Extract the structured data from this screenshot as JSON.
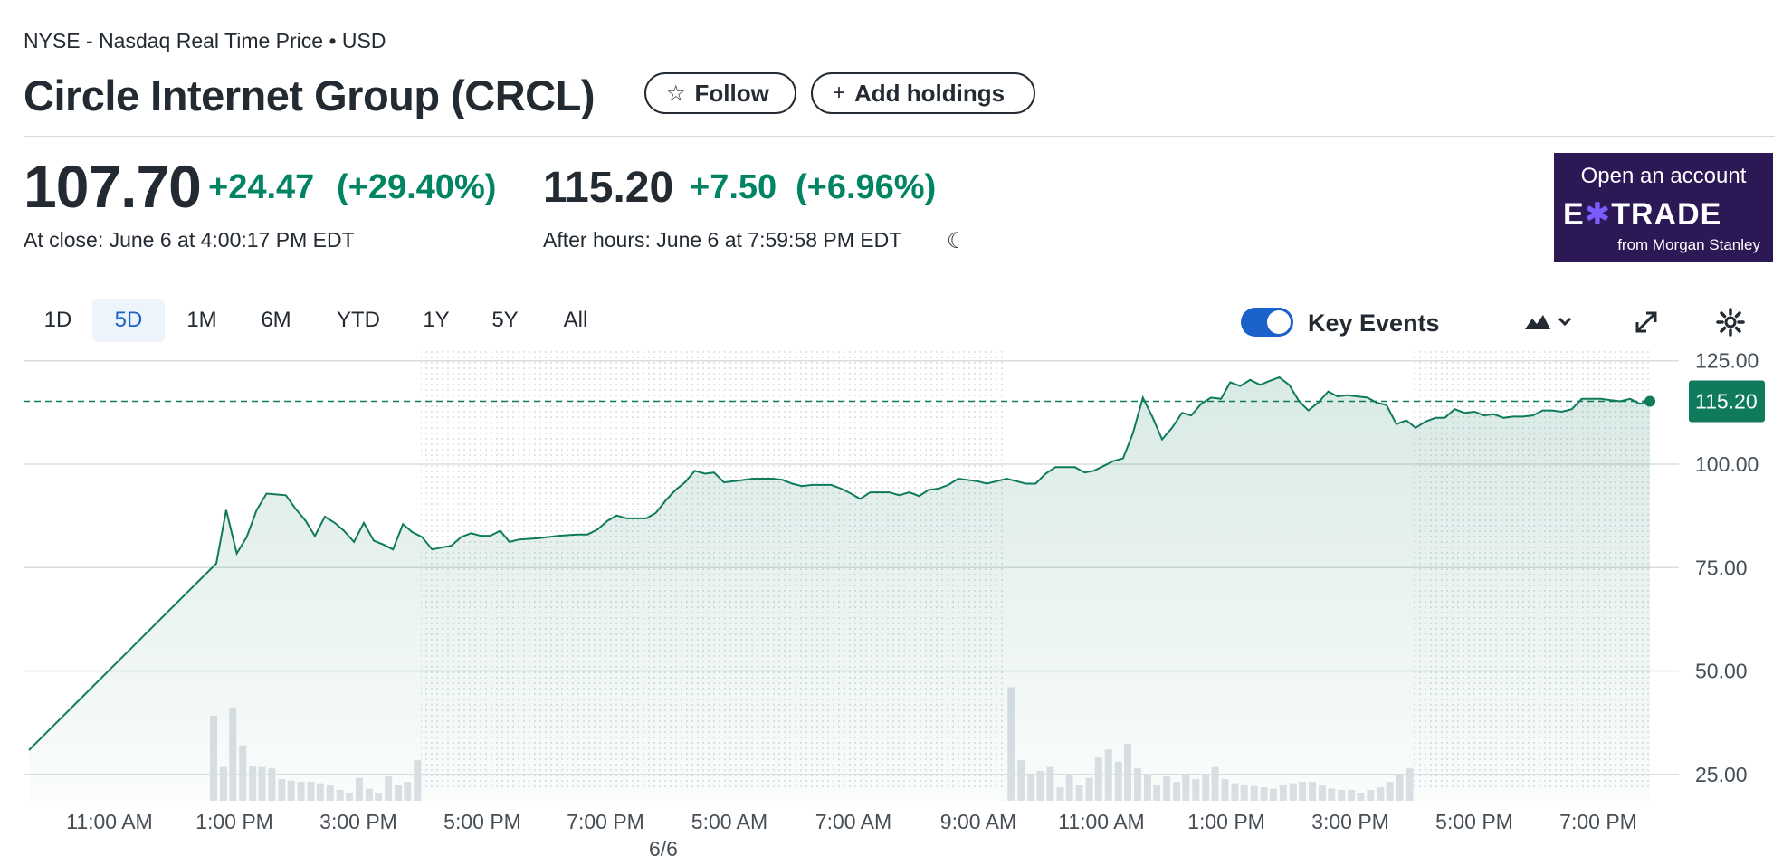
{
  "header": {
    "exchange": "NYSE - Nasdaq Real Time Price • USD",
    "title": "Circle Internet Group (CRCL)",
    "follow_label": "Follow",
    "add_holdings_label": "Add holdings"
  },
  "quote": {
    "close_price": "107.70",
    "close_change": "+24.47",
    "close_change_pct": "(+29.40%)",
    "close_time": "At close: June 6 at 4:00:17 PM EDT",
    "after_price": "115.20",
    "after_change": "+7.50",
    "after_change_pct": "(+6.96%)",
    "after_time": "After hours: June 6 at 7:59:58 PM EDT"
  },
  "ad": {
    "line1": "Open an account",
    "brand_a": "E",
    "brand_x": "✱",
    "brand_b": "TRADE",
    "line3": "from Morgan Stanley"
  },
  "ranges": [
    "1D",
    "5D",
    "1M",
    "6M",
    "YTD",
    "1Y",
    "5Y",
    "All"
  ],
  "active_range": "5D",
  "key_events_label": "Key Events",
  "icons": {
    "follow": "star-icon",
    "add": "plus-icon",
    "after_hours": "moon-icon",
    "chart_type": "mountain-chart-icon",
    "expand": "expand-icon",
    "settings": "gear-icon"
  },
  "colors": {
    "positive": "#008463",
    "line": "#0f7a5c",
    "accent": "#1a62c9",
    "ad_bg": "#2b1855"
  },
  "chart_data": {
    "type": "area",
    "current_label": "115.20",
    "y_ticks": [
      "125.00",
      "100.00",
      "75.00",
      "50.00",
      "25.00"
    ],
    "ylim": [
      21.9,
      129.1
    ],
    "x_tick_labels": [
      "11:00 AM",
      "1:00 PM",
      "3:00 PM",
      "5:00 PM",
      "7:00 PM",
      "5:00 AM",
      "7:00 AM",
      "9:00 AM",
      "11:00 AM",
      "1:00 PM",
      "3:00 PM",
      "5:00 PM",
      "7:00 PM"
    ],
    "date_label": "6/6",
    "reference_line": 115.2,
    "price_series": [
      [
        0,
        30.9
      ],
      [
        2.83,
        76.0
      ],
      [
        2.98,
        88.9
      ],
      [
        3.14,
        78.4
      ],
      [
        3.29,
        82.4
      ],
      [
        3.44,
        88.9
      ],
      [
        3.59,
        92.9
      ],
      [
        3.88,
        92.5
      ],
      [
        4.03,
        89.2
      ],
      [
        4.18,
        86.3
      ],
      [
        4.32,
        82.6
      ],
      [
        4.47,
        87.3
      ],
      [
        4.62,
        85.8
      ],
      [
        4.76,
        83.9
      ],
      [
        4.91,
        81.2
      ],
      [
        5.06,
        85.8
      ],
      [
        5.21,
        81.5
      ],
      [
        5.35,
        80.6
      ],
      [
        5.5,
        79.4
      ],
      [
        5.65,
        85.5
      ],
      [
        5.79,
        83.6
      ],
      [
        5.94,
        82.4
      ],
      [
        6.09,
        79.4
      ],
      [
        6.38,
        80.3
      ],
      [
        6.53,
        82.4
      ],
      [
        6.68,
        83.3
      ],
      [
        6.82,
        82.7
      ],
      [
        6.97,
        82.7
      ],
      [
        7.12,
        83.9
      ],
      [
        7.26,
        81.2
      ],
      [
        7.41,
        81.8
      ],
      [
        7.71,
        82.1
      ],
      [
        8.0,
        82.7
      ],
      [
        8.29,
        83.0
      ],
      [
        8.44,
        83.0
      ],
      [
        8.59,
        84.2
      ],
      [
        8.74,
        86.3
      ],
      [
        8.88,
        87.6
      ],
      [
        9.03,
        86.9
      ],
      [
        9.18,
        86.9
      ],
      [
        9.33,
        86.9
      ],
      [
        9.47,
        88.2
      ],
      [
        9.62,
        91.2
      ],
      [
        9.77,
        93.8
      ],
      [
        9.91,
        95.6
      ],
      [
        10.06,
        98.4
      ],
      [
        10.21,
        97.7
      ],
      [
        10.35,
        98.0
      ],
      [
        10.5,
        95.6
      ],
      [
        10.65,
        95.9
      ],
      [
        10.8,
        96.2
      ],
      [
        10.94,
        96.5
      ],
      [
        11.24,
        96.5
      ],
      [
        11.39,
        96.2
      ],
      [
        11.53,
        95.3
      ],
      [
        11.68,
        94.7
      ],
      [
        11.83,
        95.0
      ],
      [
        12.12,
        95.0
      ],
      [
        12.27,
        94.1
      ],
      [
        12.42,
        92.9
      ],
      [
        12.56,
        91.6
      ],
      [
        12.71,
        93.2
      ],
      [
        12.86,
        93.2
      ],
      [
        13.0,
        93.2
      ],
      [
        13.15,
        92.5
      ],
      [
        13.3,
        93.2
      ],
      [
        13.45,
        92.3
      ],
      [
        13.59,
        93.8
      ],
      [
        13.74,
        94.1
      ],
      [
        13.89,
        95.0
      ],
      [
        14.04,
        96.5
      ],
      [
        14.33,
        95.9
      ],
      [
        14.47,
        95.3
      ],
      [
        14.62,
        95.9
      ],
      [
        14.77,
        96.5
      ],
      [
        14.92,
        95.9
      ],
      [
        15.06,
        95.3
      ],
      [
        15.21,
        95.3
      ],
      [
        15.36,
        97.7
      ],
      [
        15.51,
        99.3
      ],
      [
        15.8,
        99.3
      ],
      [
        15.95,
        98.0
      ],
      [
        16.09,
        98.4
      ],
      [
        16.24,
        99.6
      ],
      [
        16.39,
        100.8
      ],
      [
        16.53,
        101.4
      ],
      [
        16.68,
        107.5
      ],
      [
        16.83,
        116.1
      ],
      [
        16.98,
        111.2
      ],
      [
        17.12,
        106.0
      ],
      [
        17.27,
        108.8
      ],
      [
        17.42,
        112.4
      ],
      [
        17.56,
        111.8
      ],
      [
        17.71,
        114.6
      ],
      [
        17.86,
        116.1
      ],
      [
        18.01,
        115.8
      ],
      [
        18.15,
        119.8
      ],
      [
        18.3,
        118.9
      ],
      [
        18.45,
        120.4
      ],
      [
        18.6,
        119.2
      ],
      [
        18.74,
        120.1
      ],
      [
        18.89,
        121.0
      ],
      [
        19.04,
        119.2
      ],
      [
        19.19,
        115.2
      ],
      [
        19.33,
        113.0
      ],
      [
        19.48,
        114.9
      ],
      [
        19.63,
        117.6
      ],
      [
        19.77,
        116.4
      ],
      [
        19.92,
        116.7
      ],
      [
        20.07,
        116.4
      ],
      [
        20.22,
        116.1
      ],
      [
        20.36,
        114.9
      ],
      [
        20.51,
        114.3
      ],
      [
        20.66,
        109.7
      ],
      [
        20.81,
        110.6
      ],
      [
        20.95,
        108.8
      ],
      [
        21.1,
        110.3
      ],
      [
        21.25,
        111.2
      ],
      [
        21.39,
        111.2
      ],
      [
        21.54,
        113.3
      ],
      [
        21.69,
        112.4
      ],
      [
        21.84,
        112.7
      ],
      [
        21.98,
        111.8
      ],
      [
        22.13,
        112.1
      ],
      [
        22.28,
        111.2
      ],
      [
        22.42,
        111.5
      ],
      [
        22.57,
        111.5
      ],
      [
        22.72,
        111.8
      ],
      [
        22.87,
        113.0
      ],
      [
        23.01,
        113.0
      ],
      [
        23.16,
        112.7
      ],
      [
        23.31,
        113.3
      ],
      [
        23.46,
        115.8
      ],
      [
        23.6,
        115.8
      ],
      [
        23.75,
        115.8
      ],
      [
        23.9,
        115.5
      ],
      [
        24.04,
        115.2
      ],
      [
        24.19,
        115.8
      ],
      [
        24.34,
        114.6
      ],
      [
        24.49,
        115.2
      ]
    ],
    "volume_series": [
      [
        2.79,
        0.724
      ],
      [
        2.94,
        0.287
      ],
      [
        3.08,
        0.793
      ],
      [
        3.23,
        0.471
      ],
      [
        3.38,
        0.299
      ],
      [
        3.52,
        0.287
      ],
      [
        3.67,
        0.276
      ],
      [
        3.82,
        0.184
      ],
      [
        3.96,
        0.172
      ],
      [
        4.11,
        0.161
      ],
      [
        4.26,
        0.161
      ],
      [
        4.4,
        0.149
      ],
      [
        4.55,
        0.138
      ],
      [
        4.7,
        0.092
      ],
      [
        4.84,
        0.069
      ],
      [
        4.99,
        0.195
      ],
      [
        5.14,
        0.103
      ],
      [
        5.28,
        0.069
      ],
      [
        5.43,
        0.207
      ],
      [
        5.58,
        0.138
      ],
      [
        5.72,
        0.161
      ],
      [
        5.87,
        0.345
      ],
      [
        14.84,
        0.966
      ],
      [
        14.99,
        0.345
      ],
      [
        15.14,
        0.23
      ],
      [
        15.28,
        0.253
      ],
      [
        15.43,
        0.287
      ],
      [
        15.58,
        0.115
      ],
      [
        15.72,
        0.23
      ],
      [
        15.87,
        0.138
      ],
      [
        16.02,
        0.195
      ],
      [
        16.16,
        0.368
      ],
      [
        16.31,
        0.437
      ],
      [
        16.46,
        0.333
      ],
      [
        16.6,
        0.483
      ],
      [
        16.75,
        0.276
      ],
      [
        16.9,
        0.23
      ],
      [
        17.04,
        0.138
      ],
      [
        17.19,
        0.207
      ],
      [
        17.34,
        0.161
      ],
      [
        17.48,
        0.23
      ],
      [
        17.63,
        0.184
      ],
      [
        17.78,
        0.23
      ],
      [
        17.92,
        0.287
      ],
      [
        18.07,
        0.184
      ],
      [
        18.22,
        0.149
      ],
      [
        18.36,
        0.138
      ],
      [
        18.51,
        0.126
      ],
      [
        18.66,
        0.115
      ],
      [
        18.8,
        0.103
      ],
      [
        18.95,
        0.138
      ],
      [
        19.1,
        0.149
      ],
      [
        19.24,
        0.161
      ],
      [
        19.39,
        0.161
      ],
      [
        19.54,
        0.138
      ],
      [
        19.68,
        0.103
      ],
      [
        19.83,
        0.092
      ],
      [
        19.98,
        0.092
      ],
      [
        20.12,
        0.069
      ],
      [
        20.27,
        0.092
      ],
      [
        20.42,
        0.115
      ],
      [
        20.56,
        0.161
      ],
      [
        20.71,
        0.218
      ],
      [
        20.86,
        0.276
      ]
    ]
  }
}
